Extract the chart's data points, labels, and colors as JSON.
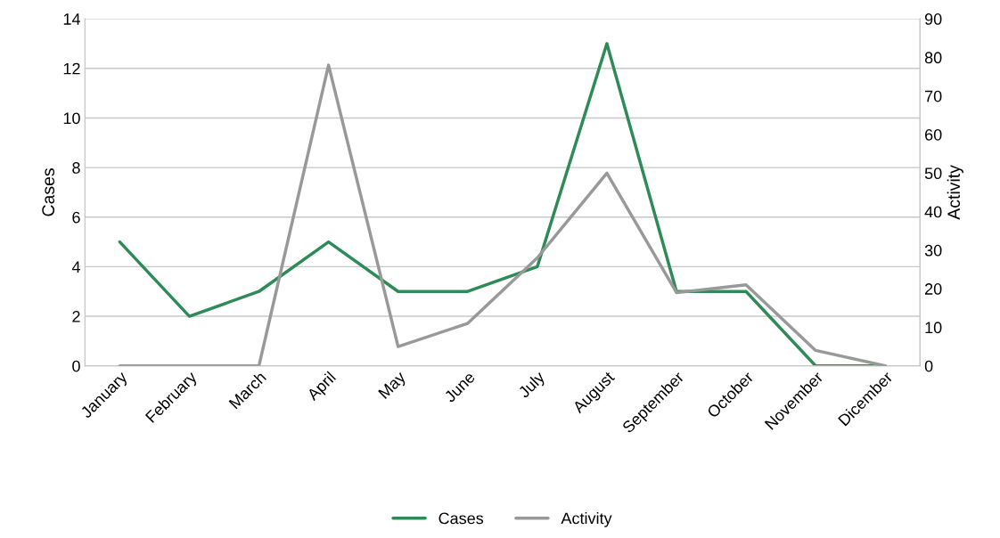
{
  "chart_data": {
    "type": "line",
    "ylabel": "Cases",
    "y2label": "Activity",
    "categories": [
      "January",
      "February",
      "March",
      "April",
      "May",
      "June",
      "July",
      "August",
      "September",
      "October",
      "November",
      "Dicember"
    ],
    "series": [
      {
        "name": "Cases",
        "color": "#2e8b57",
        "values": [
          5,
          2,
          3,
          5,
          3,
          3,
          4,
          13,
          3,
          3,
          0,
          0
        ]
      },
      {
        "name": "Activity",
        "color": "#999999",
        "axis": "y2",
        "values": [
          0,
          0,
          0,
          78,
          5,
          11,
          28,
          50,
          19,
          21,
          4,
          0
        ]
      }
    ],
    "ylim": [
      0,
      14
    ],
    "yticks": [
      0,
      2,
      4,
      6,
      8,
      10,
      12,
      14
    ],
    "y2lim": [
      0,
      90
    ],
    "y2ticks": [
      0,
      10,
      20,
      30,
      40,
      50,
      60,
      70,
      80,
      90
    ],
    "grid": "y",
    "legend": "bottom",
    "marker": "none",
    "line_style": "solid"
  }
}
